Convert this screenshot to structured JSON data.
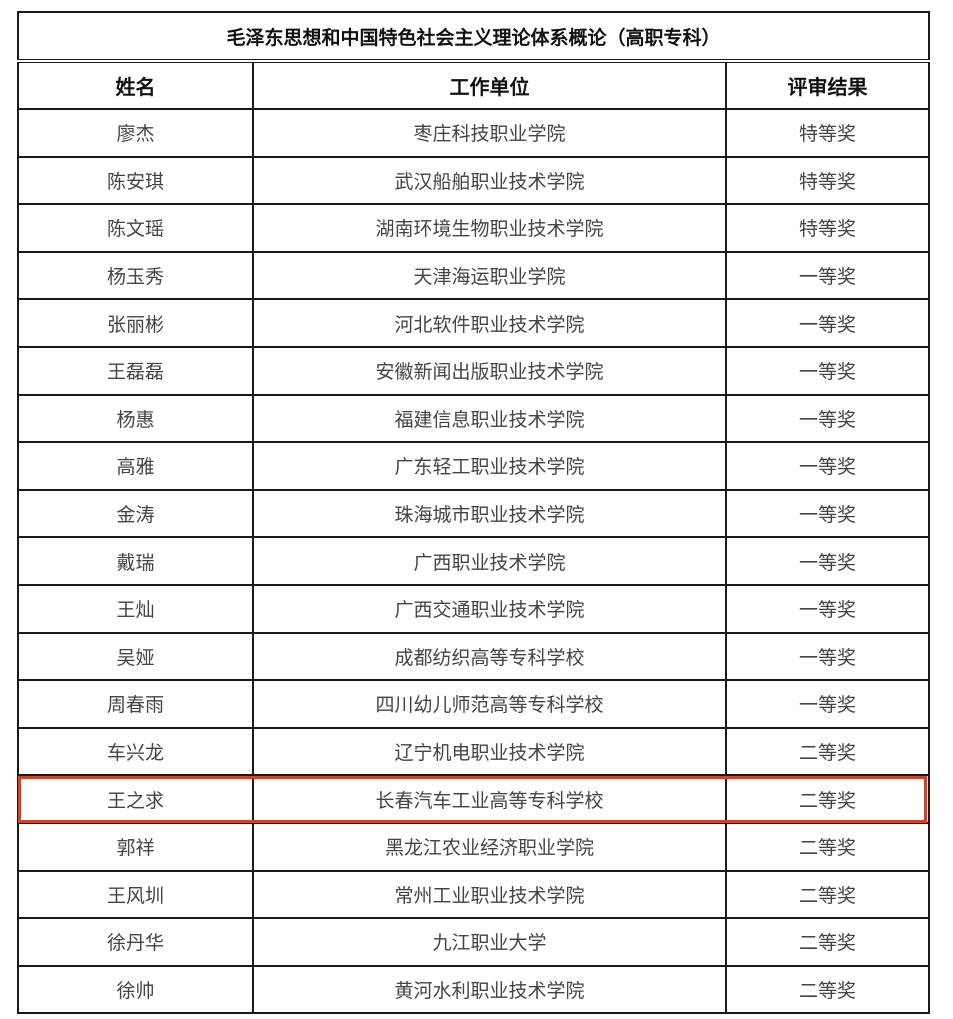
{
  "title": "毛泽东思想和中国特色社会主义理论体系概论（高职专科）",
  "headers": {
    "name": "姓名",
    "unit": "工作单位",
    "result": "评审结果"
  },
  "highlight_color": "#d0432a",
  "highlighted_row": 14,
  "rows": [
    {
      "name": "廖杰",
      "unit": "枣庄科技职业学院",
      "result": "特等奖"
    },
    {
      "name": "陈安琪",
      "unit": "武汉船舶职业技术学院",
      "result": "特等奖"
    },
    {
      "name": "陈文瑶",
      "unit": "湖南环境生物职业技术学院",
      "result": "特等奖"
    },
    {
      "name": "杨玉秀",
      "unit": "天津海运职业学院",
      "result": "一等奖"
    },
    {
      "name": "张丽彬",
      "unit": "河北软件职业技术学院",
      "result": "一等奖"
    },
    {
      "name": "王磊磊",
      "unit": "安徽新闻出版职业技术学院",
      "result": "一等奖"
    },
    {
      "name": "杨惠",
      "unit": "福建信息职业技术学院",
      "result": "一等奖"
    },
    {
      "name": "高雅",
      "unit": "广东轻工职业技术学院",
      "result": "一等奖"
    },
    {
      "name": "金涛",
      "unit": "珠海城市职业技术学院",
      "result": "一等奖"
    },
    {
      "name": "戴瑞",
      "unit": "广西职业技术学院",
      "result": "一等奖"
    },
    {
      "name": "王灿",
      "unit": "广西交通职业技术学院",
      "result": "一等奖"
    },
    {
      "name": "吴娅",
      "unit": "成都纺织高等专科学校",
      "result": "一等奖"
    },
    {
      "name": "周春雨",
      "unit": "四川幼儿师范高等专科学校",
      "result": "一等奖"
    },
    {
      "name": "车兴龙",
      "unit": "辽宁机电职业技术学院",
      "result": "二等奖"
    },
    {
      "name": "王之求",
      "unit": "长春汽车工业高等专科学校",
      "result": "二等奖"
    },
    {
      "name": "郭祥",
      "unit": "黑龙江农业经济职业学院",
      "result": "二等奖"
    },
    {
      "name": "王风圳",
      "unit": "常州工业职业技术学院",
      "result": "二等奖"
    },
    {
      "name": "徐丹华",
      "unit": "九江职业大学",
      "result": "二等奖"
    },
    {
      "name": "徐帅",
      "unit": "黄河水利职业技术学院",
      "result": "二等奖"
    }
  ]
}
